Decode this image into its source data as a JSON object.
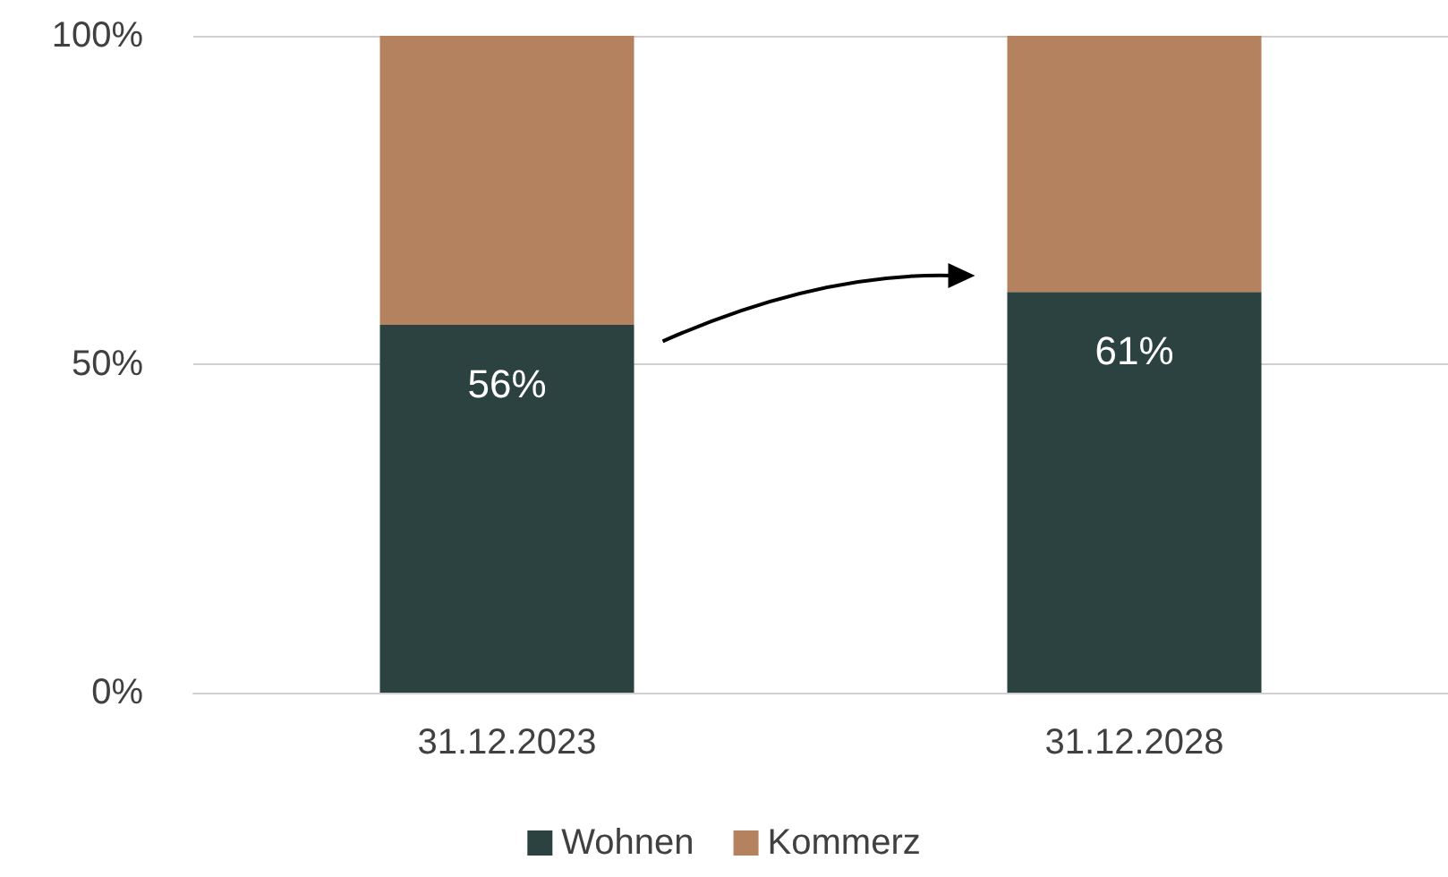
{
  "chart_data": {
    "type": "bar",
    "stacked": true,
    "categories": [
      "31.12.2023",
      "31.12.2028"
    ],
    "series": [
      {
        "name": "Wohnen",
        "color": "#2b4240",
        "values": [
          56,
          61
        ],
        "value_labels": [
          "56%",
          "61%"
        ]
      },
      {
        "name": "Kommerz",
        "color": "#b5825f",
        "values": [
          44,
          39
        ]
      }
    ],
    "ylim": [
      0,
      100
    ],
    "yticks": [
      {
        "value": 0,
        "label": "0%"
      },
      {
        "value": 50,
        "label": "50%"
      },
      {
        "value": 100,
        "label": "100%"
      }
    ],
    "grid": "y",
    "legend": "bottom"
  }
}
